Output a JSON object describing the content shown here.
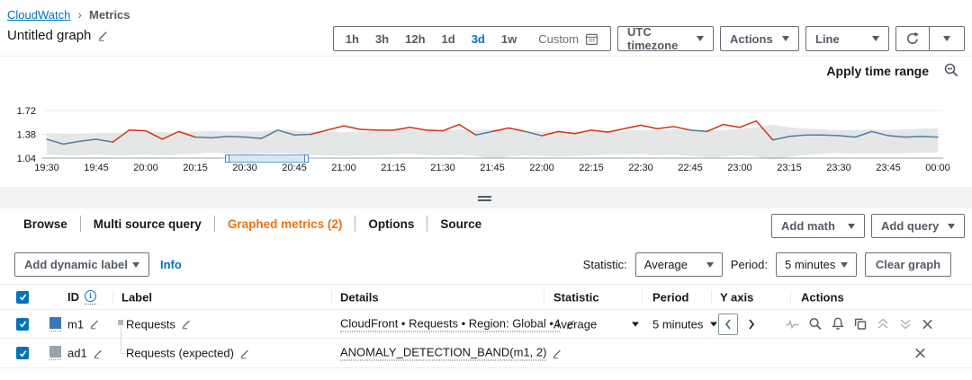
{
  "breadcrumb": {
    "cloudwatch": "CloudWatch",
    "separator": "›",
    "metrics": "Metrics"
  },
  "header": {
    "title": "Untitled graph"
  },
  "toolbar": {
    "ranges": [
      "1h",
      "3h",
      "12h",
      "1d",
      "3d",
      "1w"
    ],
    "selected": "3d",
    "custom": "Custom",
    "timezone": "UTC timezone",
    "actions": "Actions",
    "chart_type": "Line"
  },
  "graph": {
    "apply_time_range": "Apply time range"
  },
  "chart_data": {
    "type": "line",
    "x_ticks": [
      "19:30",
      "19:45",
      "20:00",
      "20:15",
      "20:30",
      "20:45",
      "21:00",
      "21:15",
      "21:30",
      "21:45",
      "22:00",
      "22:15",
      "22:30",
      "22:45",
      "23:00",
      "23:15",
      "23:30",
      "23:45",
      "00:00"
    ],
    "x_interval_minutes": 5,
    "y_ticks": [
      1.72,
      1.38,
      1.04
    ],
    "ylim": [
      1.04,
      1.72
    ],
    "band_color": "#e5e7e7",
    "series": [
      {
        "name": "Requests",
        "color": "#4e7da5",
        "anomaly_color": "#d13212",
        "values": [
          1.31,
          1.24,
          1.28,
          1.31,
          1.27,
          1.44,
          1.43,
          1.31,
          1.42,
          1.34,
          1.33,
          1.35,
          1.34,
          1.32,
          1.44,
          1.37,
          1.38,
          1.44,
          1.5,
          1.45,
          1.44,
          1.44,
          1.48,
          1.44,
          1.43,
          1.52,
          1.37,
          1.42,
          1.47,
          1.42,
          1.36,
          1.42,
          1.39,
          1.44,
          1.41,
          1.46,
          1.51,
          1.46,
          1.49,
          1.44,
          1.42,
          1.52,
          1.48,
          1.57,
          1.3,
          1.35,
          1.37,
          1.37,
          1.36,
          1.34,
          1.42,
          1.36,
          1.34,
          1.35,
          1.34
        ]
      },
      {
        "name": "Requests (expected) upper",
        "values": [
          1.4,
          1.39,
          1.39,
          1.4,
          1.4,
          1.41,
          1.41,
          1.41,
          1.4,
          1.42,
          1.43,
          1.42,
          1.42,
          1.42,
          1.45,
          1.43,
          1.42,
          1.42,
          1.41,
          1.42,
          1.42,
          1.45,
          1.45,
          1.43,
          1.44,
          1.45,
          1.44,
          1.45,
          1.44,
          1.43,
          1.42,
          1.41,
          1.42,
          1.42,
          1.43,
          1.43,
          1.44,
          1.44,
          1.45,
          1.45,
          1.44,
          1.44,
          1.46,
          1.48,
          1.52,
          1.48,
          1.46,
          1.45,
          1.44,
          1.44,
          1.45,
          1.44,
          1.45,
          1.46,
          1.47
        ]
      },
      {
        "name": "Requests (expected) lower",
        "values": [
          1.09,
          1.08,
          1.08,
          1.09,
          1.08,
          1.08,
          1.09,
          1.08,
          1.09,
          1.1,
          1.12,
          1.1,
          1.09,
          1.1,
          1.11,
          1.1,
          1.08,
          1.08,
          1.07,
          1.08,
          1.08,
          1.09,
          1.1,
          1.08,
          1.08,
          1.09,
          1.07,
          1.03,
          1.06,
          1.08,
          1.07,
          1.06,
          1.07,
          1.08,
          1.09,
          1.09,
          1.1,
          1.08,
          1.09,
          1.07,
          1.05,
          1.06,
          1.08,
          1.06,
          1.02,
          1.06,
          1.09,
          1.1,
          1.11,
          1.1,
          1.11,
          1.1,
          1.11,
          1.12,
          1.12
        ]
      }
    ]
  },
  "tabs": {
    "items": [
      "Browse",
      "Multi source query",
      "Graphed metrics (2)",
      "Options",
      "Source"
    ],
    "active_index": 2
  },
  "tab_buttons": {
    "add_math": "Add math",
    "add_query": "Add query"
  },
  "controls": {
    "add_dynamic_label": "Add dynamic label",
    "info": "Info",
    "statistic_label": "Statistic:",
    "statistic": "Average",
    "period_label": "Period:",
    "period": "5 minutes",
    "clear_graph": "Clear graph"
  },
  "table": {
    "headers": {
      "id": "ID",
      "label": "Label",
      "details": "Details",
      "statistic": "Statistic",
      "period": "Period",
      "y_axis": "Y axis",
      "actions": "Actions"
    },
    "rows": [
      {
        "id": "m1",
        "label": "Requests",
        "details": "CloudFront • Requests • Region: Global • I",
        "statistic": "Average",
        "period": "5 minutes",
        "color": "#3c76b5"
      },
      {
        "id": "ad1",
        "label": "Requests (expected)",
        "details": "ANOMALY_DETECTION_BAND(m1, 2)",
        "color": "#99a4ab"
      }
    ]
  },
  "colors": {
    "accent": "#0073bb",
    "active_tab": "#ec7211"
  }
}
